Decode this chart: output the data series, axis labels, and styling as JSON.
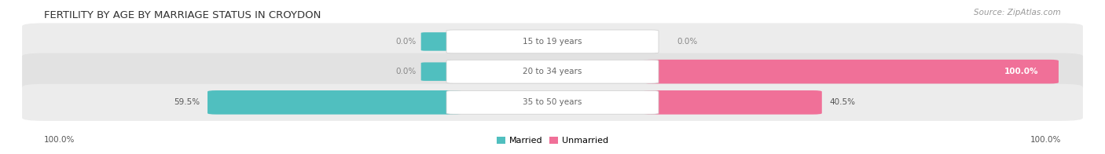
{
  "title": "FERTILITY BY AGE BY MARRIAGE STATUS IN CROYDON",
  "source": "Source: ZipAtlas.com",
  "categories": [
    "15 to 19 years",
    "20 to 34 years",
    "35 to 50 years"
  ],
  "married": [
    0.0,
    0.0,
    59.5
  ],
  "unmarried": [
    0.0,
    100.0,
    40.5
  ],
  "married_color": "#50bfbf",
  "unmarried_color": "#f07098",
  "row_bg_colors": [
    "#ececec",
    "#e2e2e2",
    "#ececec"
  ],
  "row_bg_alt": "#e8e8e8",
  "legend_married": "Married",
  "legend_unmarried": "Unmarried",
  "left_label": "100.0%",
  "right_label": "100.0%",
  "title_fontsize": 9.5,
  "source_fontsize": 7.5,
  "label_fontsize": 7.5,
  "category_fontsize": 7.5
}
